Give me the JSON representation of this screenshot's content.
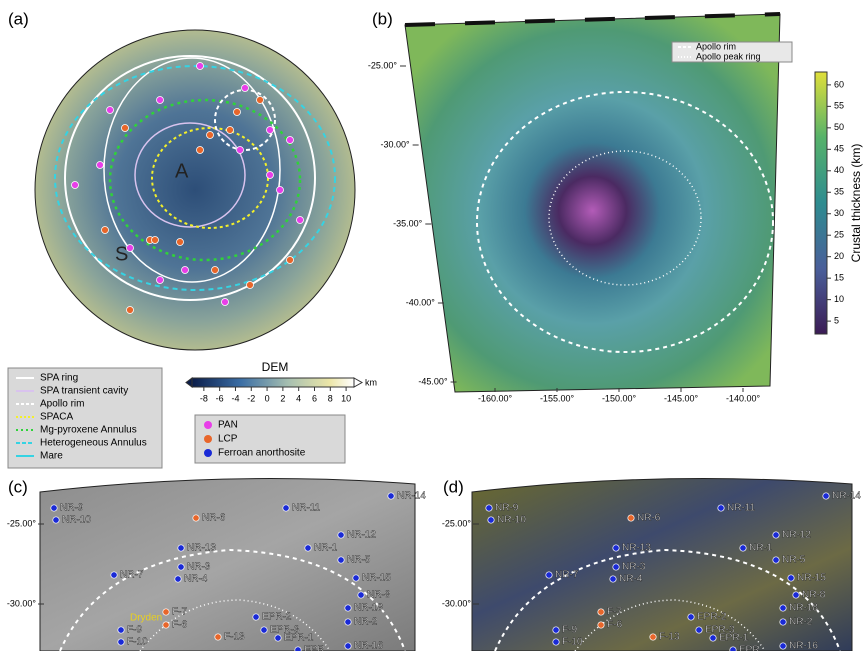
{
  "panel_a": {
    "label": "(a)",
    "site_labels": [
      "A",
      "S"
    ]
  },
  "line_legend": [
    "SPA ring",
    "SPA transient cavity",
    "Apollo rim",
    "SPACA",
    "Mg-pyroxene Annulus",
    "Heterogeneous Annulus",
    "Mare"
  ],
  "dem_colorbar": {
    "title": "DEM",
    "unit": "km",
    "ticks": [
      -8,
      -6,
      -4,
      -2,
      0,
      2,
      4,
      6,
      8,
      10
    ],
    "lim": [
      -9.5,
      11
    ]
  },
  "point_legend": [
    "PAN",
    "LCP",
    "Ferroan anorthosite"
  ],
  "panel_b": {
    "label": "(b)",
    "legend": [
      "Apollo rim",
      "Apollo peak ring"
    ],
    "lat_ticks": [
      {
        "value": -25,
        "label": "-25.00°"
      },
      {
        "value": -30,
        "label": "-30.00°"
      },
      {
        "value": -35,
        "label": "-35.00°"
      },
      {
        "value": -40,
        "label": "-40.00°"
      },
      {
        "value": -45,
        "label": "-45.00°"
      }
    ],
    "lon_ticks": [
      {
        "value": -160,
        "label": "-160.00°"
      },
      {
        "value": -155,
        "label": "-155.00°"
      },
      {
        "value": -150,
        "label": "-150.00°"
      },
      {
        "value": -145,
        "label": "-145.00°"
      },
      {
        "value": -140,
        "label": "-140.00°"
      }
    ],
    "colorbar": {
      "title": "Crustal thickness (km)",
      "ticks": [
        5,
        10,
        15,
        20,
        25,
        30,
        35,
        40,
        45,
        50,
        55,
        60
      ],
      "lim": [
        2,
        63
      ]
    }
  },
  "panel_c": {
    "label": "(c)",
    "crater_label": "Dryden",
    "lat_ticks": [
      {
        "value": -25,
        "label": "-25.00°"
      },
      {
        "value": -30,
        "label": "-30.00°"
      }
    ]
  },
  "panel_d": {
    "label": "(d)",
    "lat_ticks": [
      {
        "value": -25,
        "label": "-25.00°"
      },
      {
        "value": -30,
        "label": "-30.00°"
      }
    ]
  },
  "sample_labels": [
    "NR-9",
    "NR-10",
    "NR-6",
    "NR-11",
    "NR-14",
    "NR-12",
    "NR-1",
    "NR-5",
    "NR-13",
    "NR-3",
    "NR-4",
    "NR-7",
    "NR-15",
    "NR-8",
    "NR-18",
    "NR-2",
    "NR-16",
    "F-7",
    "F-6",
    "F-9",
    "F-10",
    "F-13",
    "EPR-2",
    "EPR-3",
    "EPR-1",
    "EPR"
  ]
}
